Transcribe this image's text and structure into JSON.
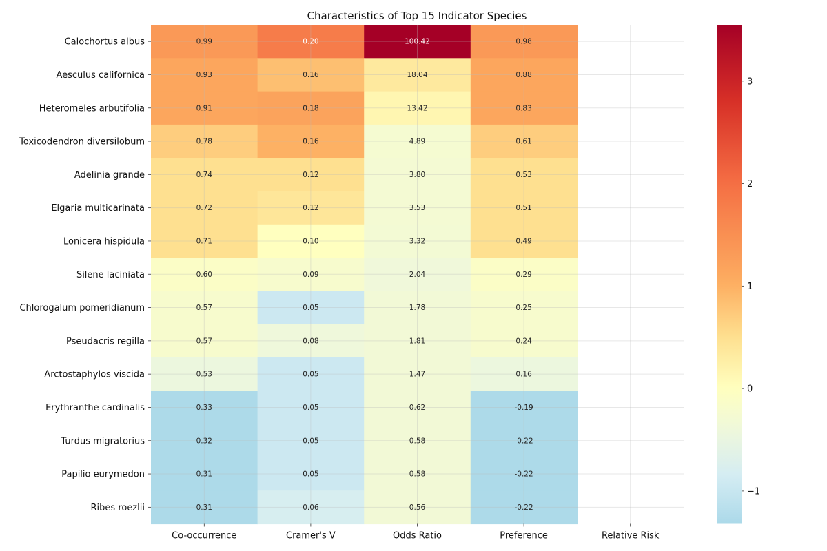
{
  "chart_data": {
    "type": "heatmap",
    "title": "Characteristics of Top 15 Indicator Species",
    "columns": [
      "Co-occurrence",
      "Cramer's V",
      "Odds Ratio",
      "Preference",
      "Relative Risk"
    ],
    "rows": [
      "Calochortus albus",
      "Aesculus californica",
      "Heteromeles arbutifolia",
      "Toxicodendron diversilobum",
      "Adelinia grande",
      "Elgaria multicarinata",
      "Lonicera hispidula",
      "Silene laciniata",
      "Chlorogalum pomeridianum",
      "Pseudacris regilla",
      "Arctostaphylos viscida",
      "Erythranthe cardinalis",
      "Turdus migratorius",
      "Papilio eurymedon",
      "Ribes roezlii"
    ],
    "labels": [
      [
        "0.99",
        "0.20",
        "100.42",
        "0.98",
        ""
      ],
      [
        "0.93",
        "0.16",
        "18.04",
        "0.88",
        ""
      ],
      [
        "0.91",
        "0.18",
        "13.42",
        "0.83",
        ""
      ],
      [
        "0.78",
        "0.16",
        "4.89",
        "0.61",
        ""
      ],
      [
        "0.74",
        "0.12",
        "3.80",
        "0.53",
        ""
      ],
      [
        "0.72",
        "0.12",
        "3.53",
        "0.51",
        ""
      ],
      [
        "0.71",
        "0.10",
        "3.32",
        "0.49",
        ""
      ],
      [
        "0.60",
        "0.09",
        "2.04",
        "0.29",
        ""
      ],
      [
        "0.57",
        "0.05",
        "1.78",
        "0.25",
        ""
      ],
      [
        "0.57",
        "0.08",
        "1.81",
        "0.24",
        ""
      ],
      [
        "0.53",
        "0.05",
        "1.47",
        "0.16",
        ""
      ],
      [
        "0.33",
        "0.05",
        "0.62",
        "-0.19",
        ""
      ],
      [
        "0.32",
        "0.05",
        "0.58",
        "-0.22",
        ""
      ],
      [
        "0.31",
        "0.05",
        "0.58",
        "-0.22",
        ""
      ],
      [
        "0.31",
        "0.06",
        "0.56",
        "-0.22",
        ""
      ]
    ],
    "color_values": [
      [
        1.35,
        1.8,
        3.55,
        1.35,
        null
      ],
      [
        1.15,
        0.85,
        0.35,
        1.15,
        null
      ],
      [
        1.15,
        1.2,
        0.15,
        1.15,
        null
      ],
      [
        0.7,
        1.0,
        -0.25,
        0.7,
        null
      ],
      [
        0.5,
        0.5,
        -0.28,
        0.5,
        null
      ],
      [
        0.5,
        0.4,
        -0.28,
        0.5,
        null
      ],
      [
        0.5,
        0.0,
        -0.3,
        0.5,
        null
      ],
      [
        -0.1,
        -0.2,
        -0.38,
        -0.1,
        null
      ],
      [
        -0.2,
        -0.95,
        -0.32,
        -0.2,
        null
      ],
      [
        -0.2,
        -0.4,
        -0.32,
        -0.2,
        null
      ],
      [
        -0.45,
        -0.95,
        -0.32,
        -0.45,
        null
      ],
      [
        -1.3,
        -0.95,
        -0.32,
        -1.3,
        null
      ],
      [
        -1.3,
        -0.95,
        -0.32,
        -1.3,
        null
      ],
      [
        -1.3,
        -0.95,
        -0.32,
        -1.3,
        null
      ],
      [
        -1.3,
        -0.8,
        -0.32,
        -1.3,
        null
      ]
    ],
    "colorbar": {
      "min": -1.32,
      "max": 3.55,
      "ticks": [
        -1,
        0,
        1,
        2,
        3
      ],
      "tick_labels": [
        "−1",
        "0",
        "1",
        "2",
        "3"
      ],
      "colormap": "RdYlBu_r (centered at 0)"
    },
    "grid": true,
    "colors": {
      "low": "#abd9e9",
      "mid": "#ffffbf",
      "high": "#a50026"
    }
  }
}
